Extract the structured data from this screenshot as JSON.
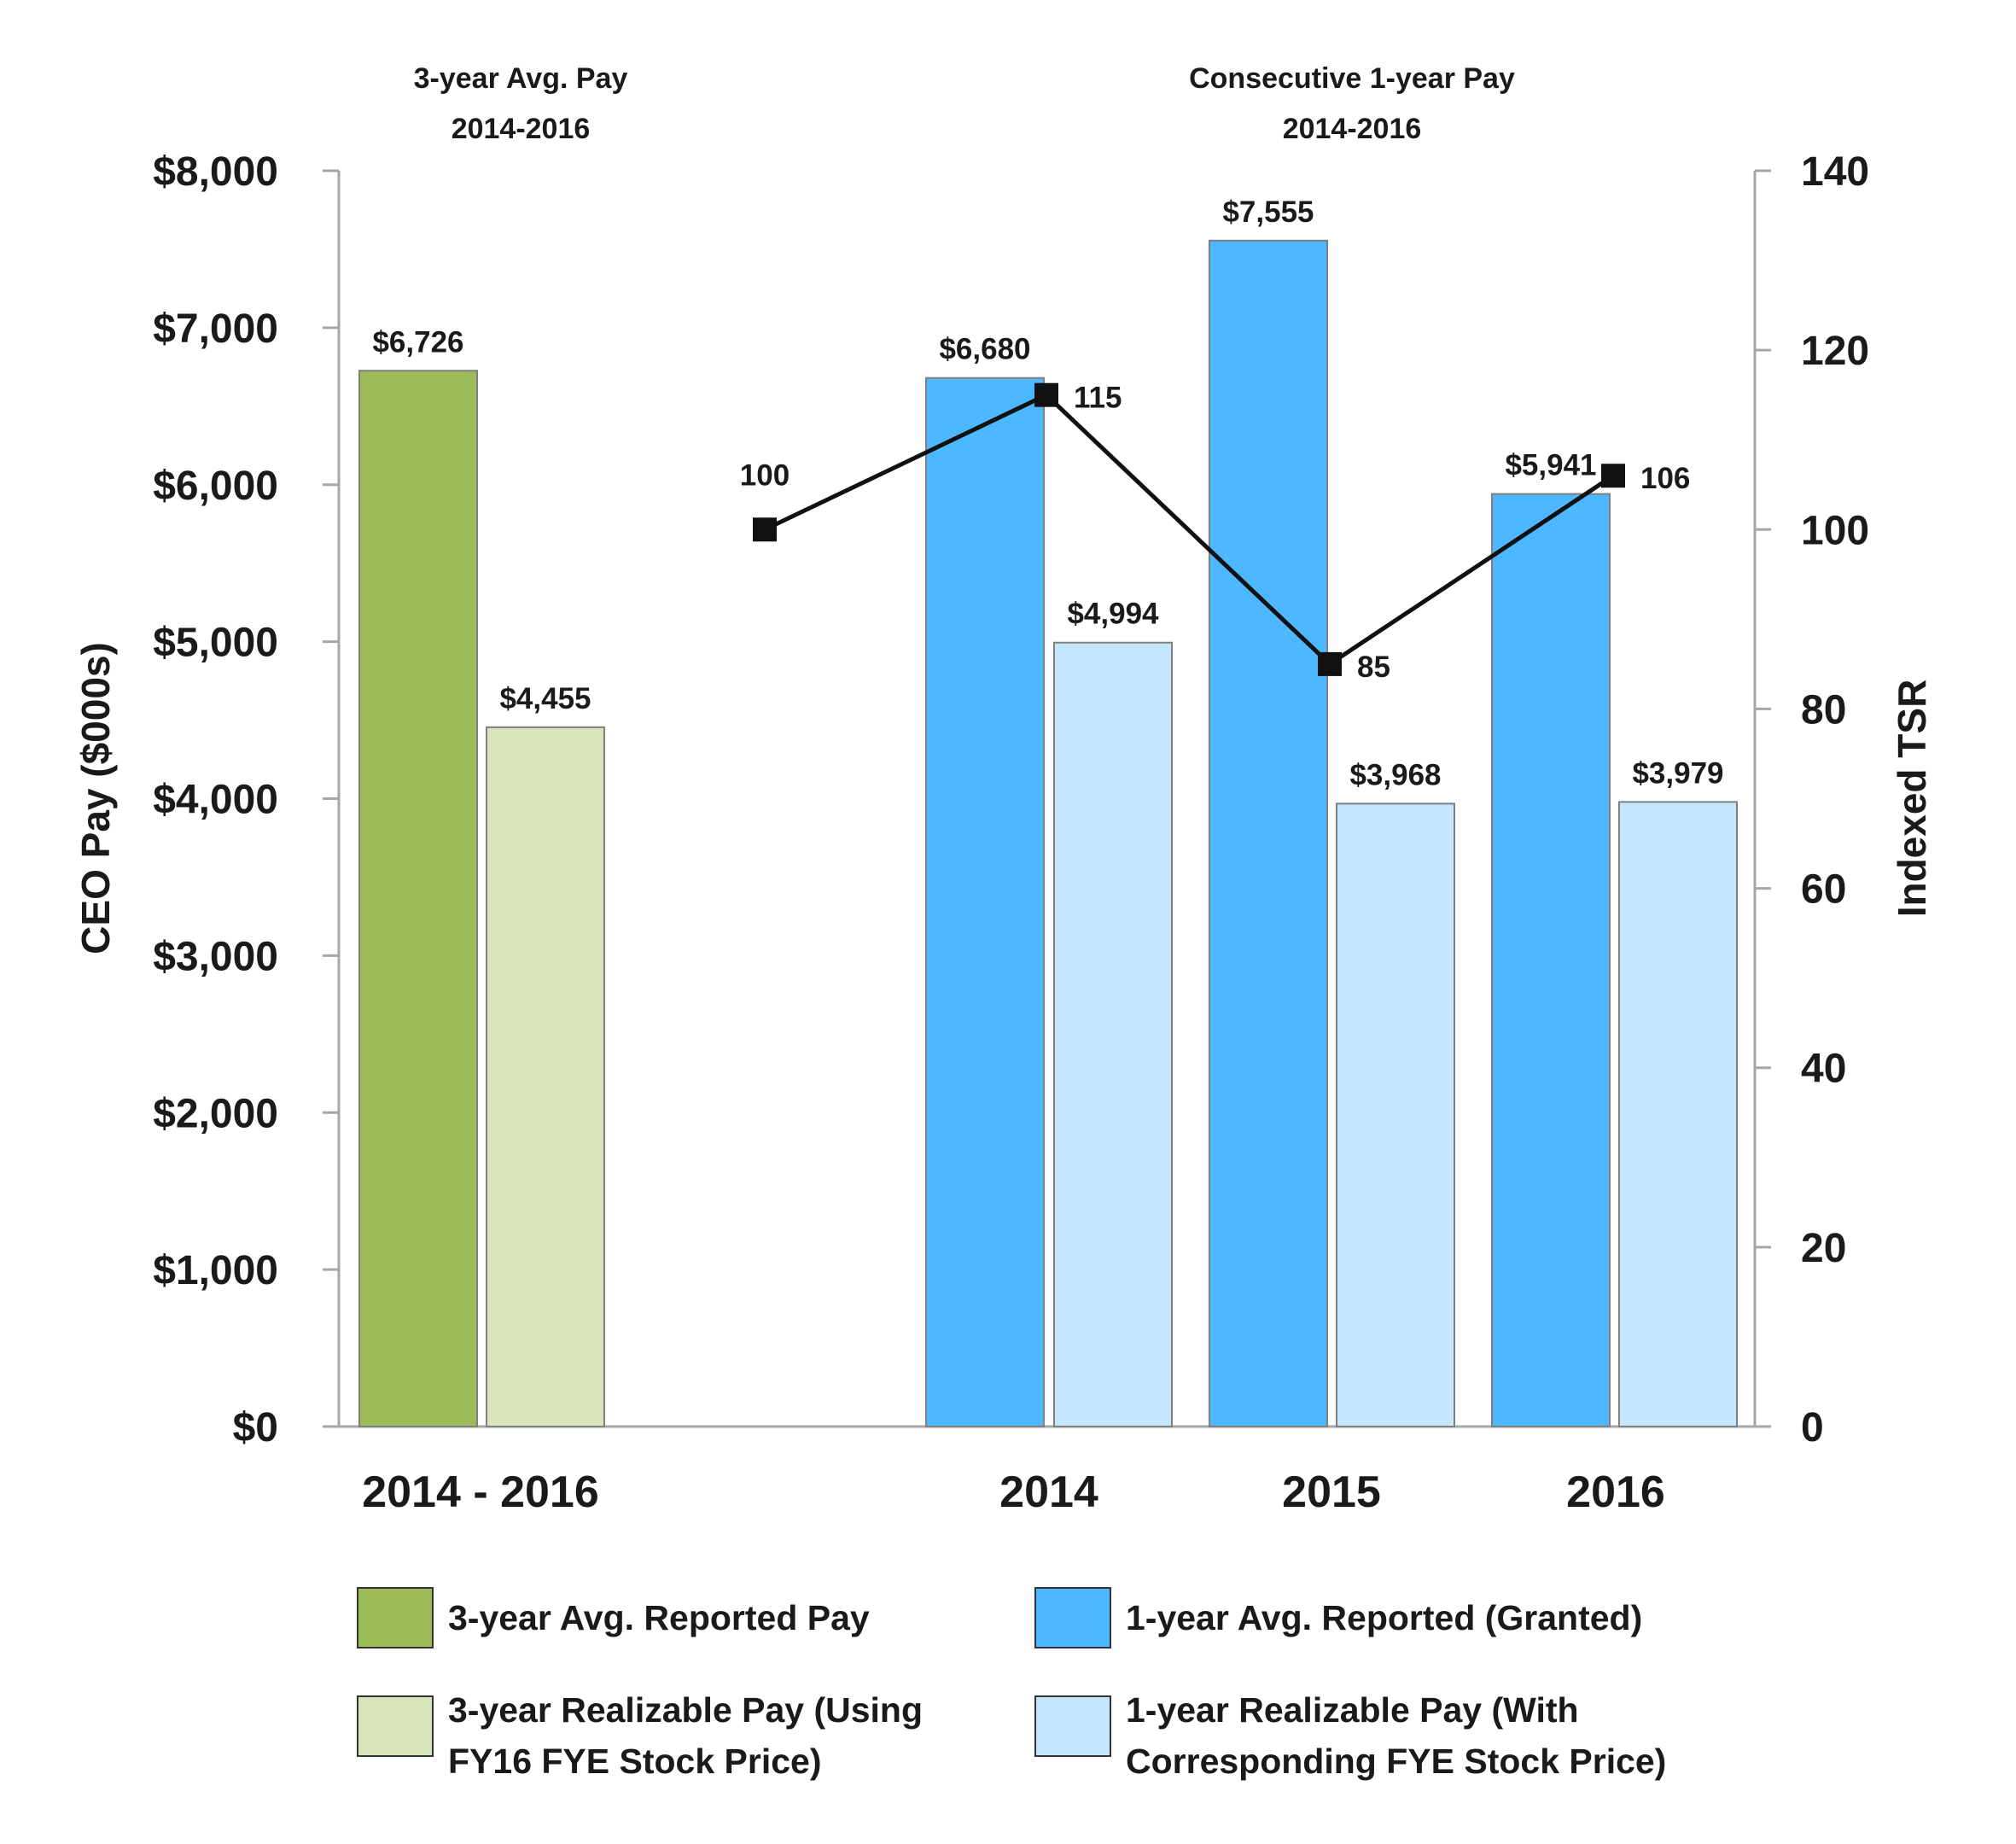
{
  "chart_data": {
    "type": "bar",
    "group_titles": [
      {
        "line1": "3-year Avg. Pay",
        "line2": "2014-2016"
      },
      {
        "line1": "Consecutive 1-year Pay",
        "line2": "2014-2016"
      }
    ],
    "categories": [
      "2014 - 2016",
      "2014",
      "2015",
      "2016"
    ],
    "series": [
      {
        "name": "3-year Avg. Reported Pay",
        "color": "#9bbb59",
        "values": [
          6726,
          null,
          null,
          null
        ],
        "labels": [
          "$6,726",
          "",
          "",
          ""
        ]
      },
      {
        "name": "3-year Realizable Pay (Using FY16 FYE Stock Price)",
        "color": "#d8e4bc",
        "values": [
          4455,
          null,
          null,
          null
        ],
        "labels": [
          "$4,455",
          "",
          "",
          ""
        ]
      },
      {
        "name": "1-year Avg. Reported (Granted)",
        "color": "#4db8ff",
        "values": [
          null,
          6680,
          7555,
          5941
        ],
        "labels": [
          "",
          "$6,680",
          "$7,555",
          "$5,941"
        ]
      },
      {
        "name": "1-year Realizable Pay (With Corresponding FYE Stock Price)",
        "color": "#c5e6ff",
        "values": [
          null,
          4994,
          3968,
          3979
        ],
        "labels": [
          "",
          "$4,994",
          "$3,968",
          "$3,979"
        ]
      }
    ],
    "line_series": {
      "name": "Indexed TSR",
      "color": "#111111",
      "points": [
        {
          "position": "start",
          "value": 100,
          "label": "100"
        },
        {
          "position": "2014",
          "value": 115,
          "label": "115"
        },
        {
          "position": "2015",
          "value": 85,
          "label": "85"
        },
        {
          "position": "2016",
          "value": 106,
          "label": "106"
        }
      ]
    },
    "ylabel": "CEO Pay ($000s)",
    "ylim": [
      0,
      8000
    ],
    "yticks": [
      0,
      1000,
      2000,
      3000,
      4000,
      5000,
      6000,
      7000,
      8000
    ],
    "ytick_labels": [
      "$0",
      "$1,000",
      "$2,000",
      "$3,000",
      "$4,000",
      "$5,000",
      "$6,000",
      "$7,000",
      "$8,000"
    ],
    "y2label": "Indexed TSR",
    "y2lim": [
      0,
      140
    ],
    "y2ticks": [
      0,
      20,
      40,
      60,
      80,
      100,
      120,
      140
    ],
    "y2tick_labels": [
      "0",
      "20",
      "40",
      "60",
      "80",
      "100",
      "120",
      "140"
    ],
    "legend": {
      "placement": "bottom",
      "items": [
        {
          "color": "#9bbb59",
          "lines": [
            "3-year Avg. Reported Pay"
          ]
        },
        {
          "color": "#4db8ff",
          "lines": [
            "1-year Avg. Reported (Granted)"
          ]
        },
        {
          "color": "#d8e4bc",
          "lines": [
            "3-year Realizable Pay (Using",
            "FY16 FYE Stock Price)"
          ]
        },
        {
          "color": "#c5e6ff",
          "lines": [
            "1-year Realizable Pay (With",
            "Corresponding FYE Stock Price)"
          ]
        }
      ]
    }
  }
}
